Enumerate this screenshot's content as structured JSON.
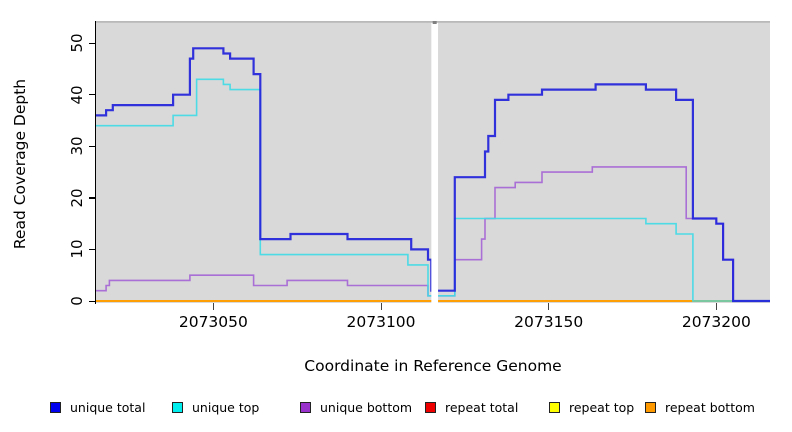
{
  "chart_data": {
    "type": "line",
    "subtype": "step",
    "title": "",
    "xlabel": "Coordinate in Reference Genome",
    "ylabel": "Read Coverage Depth",
    "xlim": [
      2073015,
      2073216
    ],
    "ylim": [
      0,
      54.3
    ],
    "x_end": 2073216,
    "xticks": [
      2073050,
      2073100,
      2073150,
      2073200
    ],
    "yticks": [
      0,
      10,
      20,
      30,
      40,
      50
    ],
    "grid": false,
    "legend_position": "bottom",
    "plot_background": "#d9d9d9",
    "top_border_color": "#b9b9b9",
    "gap_x": [
      2073115,
      2073117
    ],
    "gap_color": "#ffffff",
    "draw_order": [
      3,
      4,
      5,
      2,
      1,
      0
    ],
    "series": [
      {
        "name": "unique total",
        "color": "#2323dc",
        "legend_color": "#0000ee",
        "line_width": 2.2,
        "points": [
          [
            2073015,
            36
          ],
          [
            2073018,
            37
          ],
          [
            2073020,
            38
          ],
          [
            2073038,
            40
          ],
          [
            2073043,
            47
          ],
          [
            2073044,
            49
          ],
          [
            2073053,
            48
          ],
          [
            2073055,
            47
          ],
          [
            2073062,
            44
          ],
          [
            2073064,
            12
          ],
          [
            2073073,
            13
          ],
          [
            2073090,
            12
          ],
          [
            2073109,
            10
          ],
          [
            2073114,
            8
          ],
          [
            2073115,
            2
          ],
          [
            2073117,
            2
          ],
          [
            2073122,
            24
          ],
          [
            2073131,
            29
          ],
          [
            2073132,
            32
          ],
          [
            2073134,
            39
          ],
          [
            2073138,
            40
          ],
          [
            2073148,
            41
          ],
          [
            2073164,
            42
          ],
          [
            2073179,
            41
          ],
          [
            2073188,
            39
          ],
          [
            2073193,
            16
          ],
          [
            2073200,
            15
          ],
          [
            2073202,
            8
          ],
          [
            2073205,
            0
          ]
        ]
      },
      {
        "name": "unique top",
        "color": "#41dbe6",
        "legend_color": "#00eeee",
        "line_width": 1.6,
        "points": [
          [
            2073015,
            34
          ],
          [
            2073038,
            36
          ],
          [
            2073045,
            43
          ],
          [
            2073053,
            42
          ],
          [
            2073055,
            41
          ],
          [
            2073064,
            9
          ],
          [
            2073108,
            7
          ],
          [
            2073114,
            1
          ],
          [
            2073122,
            16
          ],
          [
            2073179,
            15
          ],
          [
            2073188,
            13
          ],
          [
            2073193,
            0
          ]
        ]
      },
      {
        "name": "unique bottom",
        "color": "#a666d6",
        "legend_color": "#9932cc",
        "line_width": 1.6,
        "points": [
          [
            2073015,
            2
          ],
          [
            2073018,
            3
          ],
          [
            2073019,
            4
          ],
          [
            2073043,
            5
          ],
          [
            2073062,
            3
          ],
          [
            2073072,
            4
          ],
          [
            2073090,
            3
          ],
          [
            2073114,
            1
          ],
          [
            2073122,
            8
          ],
          [
            2073130,
            12
          ],
          [
            2073131,
            16
          ],
          [
            2073134,
            22
          ],
          [
            2073140,
            23
          ],
          [
            2073148,
            25
          ],
          [
            2073163,
            26
          ],
          [
            2073191,
            16
          ],
          [
            2073200,
            15
          ],
          [
            2073202,
            8
          ],
          [
            2073205,
            0
          ]
        ]
      },
      {
        "name": "repeat total",
        "color": "#ee2222",
        "legend_color": "#ee0000",
        "line_width": 1.6,
        "points": [
          [
            2073015,
            0
          ]
        ]
      },
      {
        "name": "repeat top",
        "color": "#ffff33",
        "legend_color": "#ffff00",
        "line_width": 1.6,
        "points": [
          [
            2073015,
            0
          ]
        ]
      },
      {
        "name": "repeat bottom",
        "color": "#ff9a00",
        "legend_color": "#ff9900",
        "line_width": 2.0,
        "points": [
          [
            2073015,
            0
          ]
        ]
      }
    ]
  },
  "legend": {
    "items": [
      {
        "label": "unique total"
      },
      {
        "label": "unique top"
      },
      {
        "label": "unique bottom"
      },
      {
        "label": "repeat total"
      },
      {
        "label": "repeat top"
      },
      {
        "label": "repeat bottom"
      }
    ]
  }
}
